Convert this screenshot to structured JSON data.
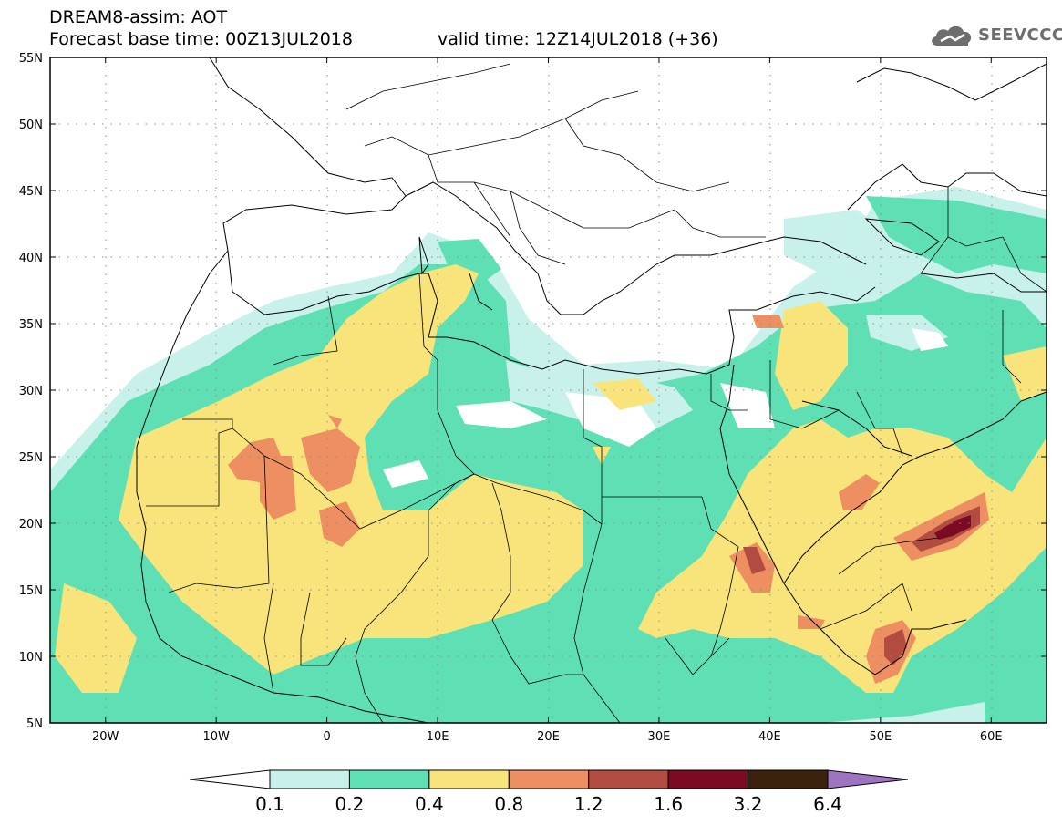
{
  "header": {
    "model_line": "DREAM8-assim: AOT",
    "base_time_line": "Forecast base time: 00Z13JUL2018",
    "valid_time_line": "valid time: 12Z14JUL2018 (+36)",
    "logo_text": "SEEVCCC",
    "logo_icon": "cloud-icon"
  },
  "map": {
    "lon_range": [
      -25,
      65
    ],
    "lat_range": [
      5,
      55
    ],
    "lon_ticks": [
      "20W",
      "10W",
      "0",
      "10E",
      "20E",
      "30E",
      "40E",
      "50E",
      "60E"
    ],
    "lat_ticks": [
      "55N",
      "50N",
      "45N",
      "40N",
      "35N",
      "30N",
      "25N",
      "20N",
      "15N",
      "10N",
      "5N"
    ],
    "grid": "dotted"
  },
  "colorbar": {
    "levels": [
      "0.1",
      "0.2",
      "0.4",
      "0.8",
      "1.2",
      "1.6",
      "3.2",
      "6.4"
    ],
    "colors": [
      "#c8f1ec",
      "#5ee0b4",
      "#f8e47a",
      "#ee8f62",
      "#b24c41",
      "#7b0a22",
      "#3a220c"
    ],
    "under_color": "#ffffff",
    "over_color": "#9e73c0"
  }
}
